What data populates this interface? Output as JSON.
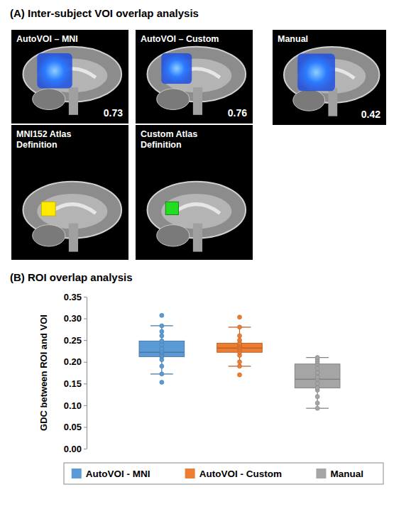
{
  "figure": {
    "title": "(A) Inter-subject VOI overlap analysis",
    "panels": [
      {
        "label": [
          "AutoVOI – MNI"
        ],
        "value": 0.73
      },
      {
        "label": [
          "AutoVOI – Custom"
        ],
        "value": 0.76
      },
      {
        "label": [
          "Manual"
        ],
        "value": 0.42
      },
      {
        "label": [
          "MNI152 Atlas",
          "Definition"
        ]
      },
      {
        "label": [
          "Custom Atlas",
          "Definition"
        ]
      }
    ]
  },
  "chart_data": {
    "type": "box",
    "title": "(B) ROI overlap analysis",
    "y_label": "GDC between ROI and VOI",
    "ylim": [
      0,
      0.35
    ],
    "yticks": [
      {
        "value": 0,
        "label": "0.00"
      },
      {
        "value": 0.05,
        "label": "0.05"
      },
      {
        "value": 0.1,
        "label": "0.10"
      },
      {
        "value": 0.15,
        "label": "0.15"
      },
      {
        "value": 0.2,
        "label": "0.20"
      },
      {
        "value": 0.25,
        "label": "0.25"
      },
      {
        "value": 0.3,
        "label": "0.30"
      },
      {
        "value": 0.35,
        "label": "0.35"
      }
    ],
    "tick_labels": "y",
    "legend": "bottom",
    "series": [
      {
        "name": "AutoVOI - MNI",
        "color": "#5b9bd5",
        "whisker_low": 0.172,
        "q1": 0.212,
        "median": 0.222,
        "q3": 0.248,
        "whisker_high": 0.283,
        "points": [
          0.153,
          0.172,
          0.19,
          0.205,
          0.212,
          0.215,
          0.22,
          0.222,
          0.225,
          0.23,
          0.24,
          0.248,
          0.26,
          0.27,
          0.283,
          0.307
        ]
      },
      {
        "name": "AutoVOI - Custom",
        "color": "#ed7d31",
        "whisker_low": 0.19,
        "q1": 0.222,
        "median": 0.232,
        "q3": 0.243,
        "whisker_high": 0.28,
        "points": [
          0.17,
          0.19,
          0.2,
          0.215,
          0.222,
          0.228,
          0.232,
          0.235,
          0.238,
          0.24,
          0.243,
          0.25,
          0.26,
          0.28,
          0.303
        ]
      },
      {
        "name": "Manual",
        "color": "#a5a5a5",
        "whisker_low": 0.093,
        "q1": 0.14,
        "median": 0.16,
        "q3": 0.195,
        "whisker_high": 0.21,
        "points": [
          0.093,
          0.105,
          0.12,
          0.135,
          0.14,
          0.15,
          0.16,
          0.165,
          0.175,
          0.185,
          0.195,
          0.2,
          0.205,
          0.21
        ]
      }
    ]
  }
}
